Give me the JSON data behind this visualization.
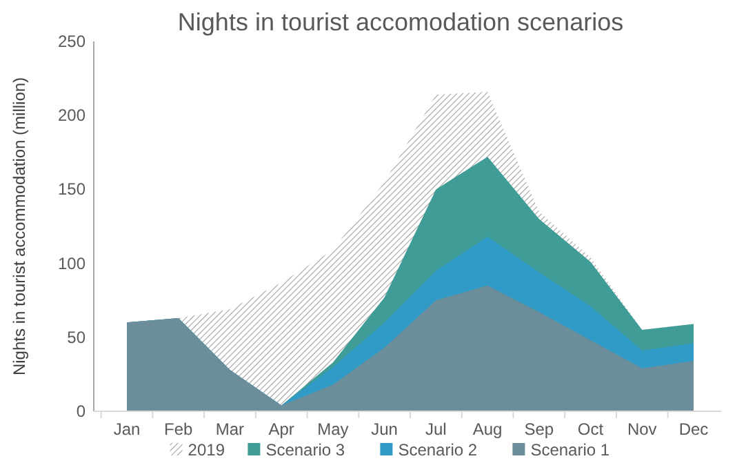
{
  "chart_data": {
    "type": "area",
    "title": "Nights in tourist accomodation scenarios",
    "ylabel": "Nights in tourist accommodation (million)",
    "categories": [
      "Jan",
      "Feb",
      "Mar",
      "Apr",
      "May",
      "Jun",
      "Jul",
      "Aug",
      "Sep",
      "Oct",
      "Nov",
      "Dec"
    ],
    "series": [
      {
        "name": "2019",
        "color": "#808080",
        "values": [
          60,
          63,
          69,
          87,
          109,
          155,
          214,
          216,
          135,
          104,
          55,
          59
        ]
      },
      {
        "name": "Scenario 3",
        "color": "#3f9c96",
        "values": [
          60,
          63,
          28,
          4,
          33,
          77,
          150,
          172,
          130,
          101,
          55,
          59
        ]
      },
      {
        "name": "Scenario 2",
        "color": "#2f9bc6",
        "values": [
          60,
          63,
          28,
          4,
          30,
          60,
          95,
          118,
          94,
          71,
          41,
          46
        ]
      },
      {
        "name": "Scenario 1",
        "color": "#6b8e9a",
        "values": [
          60,
          63,
          28,
          4,
          18,
          43,
          75,
          85,
          67,
          48,
          29,
          34
        ]
      }
    ],
    "ylim": [
      0,
      250
    ],
    "yticks": [
      0,
      50,
      100,
      150,
      200,
      250
    ],
    "grid": false,
    "legend": "bottom"
  }
}
